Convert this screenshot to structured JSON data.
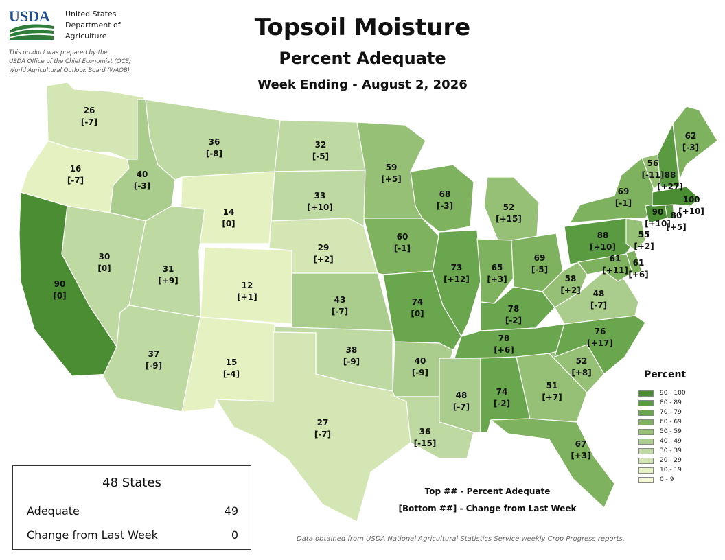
{
  "header": {
    "logo_text": "USDA",
    "agency_lines": [
      "United States",
      "Department of",
      "Agriculture"
    ],
    "prepared_lines": [
      "This product was prepared by the",
      "USDA Office of the Chief Economist (OCE)",
      "World Agricultural Outlook Board (WAOB)"
    ],
    "title": "Topsoil Moisture",
    "subtitle": "Percent Adequate",
    "week": "Week Ending - August 2, 2026"
  },
  "colors": {
    "90-100": "#4a8d33",
    "80-89": "#5a9a40",
    "70-79": "#6aa64e",
    "60-69": "#7eb25f",
    "50-59": "#95c076",
    "40-49": "#aacd8d",
    "30-39": "#bfd9a3",
    "20-29": "#d3e6b4",
    "10-19": "#e6f1c1",
    "0-9": "#f5f8d7",
    "border": "#ffffff"
  },
  "states": [
    {
      "name": "WA",
      "adequate": "26",
      "change": "[-7]"
    },
    {
      "name": "OR",
      "adequate": "16",
      "change": "[-7]"
    },
    {
      "name": "CA",
      "adequate": "90",
      "change": "[0]"
    },
    {
      "name": "ID",
      "adequate": "40",
      "change": "[-3]"
    },
    {
      "name": "NV",
      "adequate": "30",
      "change": "[0]"
    },
    {
      "name": "MT",
      "adequate": "36",
      "change": "[-8]"
    },
    {
      "name": "WY",
      "adequate": "14",
      "change": "[0]"
    },
    {
      "name": "UT",
      "adequate": "31",
      "change": "[+9]"
    },
    {
      "name": "AZ",
      "adequate": "37",
      "change": "[-9]"
    },
    {
      "name": "CO",
      "adequate": "12",
      "change": "[+1]"
    },
    {
      "name": "NM",
      "adequate": "15",
      "change": "[-4]"
    },
    {
      "name": "ND",
      "adequate": "32",
      "change": "[-5]"
    },
    {
      "name": "SD",
      "adequate": "33",
      "change": "[+10]"
    },
    {
      "name": "NE",
      "adequate": "29",
      "change": "[+2]"
    },
    {
      "name": "KS",
      "adequate": "43",
      "change": "[-7]"
    },
    {
      "name": "OK",
      "adequate": "38",
      "change": "[-9]"
    },
    {
      "name": "TX",
      "adequate": "27",
      "change": "[-7]"
    },
    {
      "name": "MN",
      "adequate": "59",
      "change": "[+5]"
    },
    {
      "name": "IA",
      "adequate": "60",
      "change": "[-1]"
    },
    {
      "name": "MO",
      "adequate": "74",
      "change": "[0]"
    },
    {
      "name": "AR",
      "adequate": "40",
      "change": "[-9]"
    },
    {
      "name": "LA",
      "adequate": "36",
      "change": "[-15]"
    },
    {
      "name": "WI",
      "adequate": "68",
      "change": "[-3]"
    },
    {
      "name": "IL",
      "adequate": "73",
      "change": "[+12]"
    },
    {
      "name": "MI",
      "adequate": "52",
      "change": "[+15]"
    },
    {
      "name": "IN",
      "adequate": "65",
      "change": "[+3]"
    },
    {
      "name": "OH",
      "adequate": "69",
      "change": "[-5]"
    },
    {
      "name": "KY",
      "adequate": "78",
      "change": "[-2]"
    },
    {
      "name": "TN",
      "adequate": "78",
      "change": "[+6]"
    },
    {
      "name": "MS",
      "adequate": "48",
      "change": "[-7]"
    },
    {
      "name": "AL",
      "adequate": "74",
      "change": "[-2]"
    },
    {
      "name": "GA",
      "adequate": "51",
      "change": "[+7]"
    },
    {
      "name": "FL",
      "adequate": "67",
      "change": "[+3]"
    },
    {
      "name": "SC",
      "adequate": "52",
      "change": "[+8]"
    },
    {
      "name": "NC",
      "adequate": "76",
      "change": "[+17]"
    },
    {
      "name": "VA",
      "adequate": "48",
      "change": "[-7]"
    },
    {
      "name": "WV",
      "adequate": "58",
      "change": "[+2]"
    },
    {
      "name": "PA",
      "adequate": "88",
      "change": "[+10]"
    },
    {
      "name": "MD",
      "adequate": "61",
      "change": "[+11]"
    },
    {
      "name": "DE",
      "adequate": "61",
      "change": "[+6]"
    },
    {
      "name": "NJ",
      "adequate": "55",
      "change": "[+2]"
    },
    {
      "name": "NY",
      "adequate": "69",
      "change": "[-1]"
    },
    {
      "name": "CT",
      "adequate": "90",
      "change": "[+10]"
    },
    {
      "name": "RI",
      "adequate": "80",
      "change": "[+5]"
    },
    {
      "name": "MA",
      "adequate": "100",
      "change": "[+10]"
    },
    {
      "name": "VT",
      "adequate": "56",
      "change": "[-11]"
    },
    {
      "name": "NH",
      "adequate": "88",
      "change": "[+27]"
    },
    {
      "name": "ME",
      "adequate": "62",
      "change": "[-3]"
    }
  ],
  "legend": {
    "title": "Percent",
    "items": [
      {
        "label": "90 - 100",
        "color": "#4a8d33"
      },
      {
        "label": "80 - 89",
        "color": "#5a9a40"
      },
      {
        "label": "70 - 79",
        "color": "#6aa64e"
      },
      {
        "label": "60 - 69",
        "color": "#7eb25f"
      },
      {
        "label": "50 - 59",
        "color": "#95c076"
      },
      {
        "label": "40 - 49",
        "color": "#aacd8d"
      },
      {
        "label": "30 - 39",
        "color": "#bfd9a3"
      },
      {
        "label": "20 - 29",
        "color": "#d3e6b4"
      },
      {
        "label": "10 - 19",
        "color": "#e6f1c1"
      },
      {
        "label": "0 - 9",
        "color": "#f5f8d7"
      }
    ]
  },
  "summary": {
    "title": "48 States",
    "adequate_label": "Adequate",
    "adequate_value": "49",
    "change_label": "Change from Last Week",
    "change_value": "0"
  },
  "notes": {
    "top": "Top ## - Percent Adequate",
    "bottom": "[Bottom ##] - Change from Last Week",
    "source": "Data obtained from USDA National Agricultural Statistics Service weekly Crop Progress reports."
  }
}
